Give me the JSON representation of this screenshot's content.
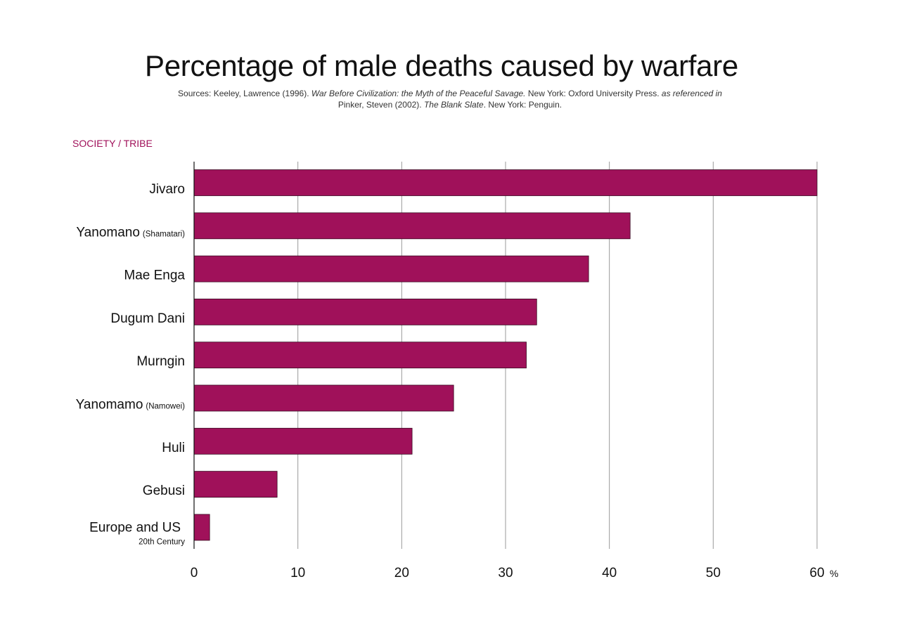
{
  "header": {
    "title": "Percentage of male deaths caused by warfare",
    "source": {
      "prefix": "Sources: Keeley, Lawrence (1996). ",
      "book1": "War Before Civilization: the Myth of the Peaceful Savage.",
      "publisher1": " New York: Oxford University Press. ",
      "ref": "as referenced in",
      "author2": "Pinker, Steven (2002). ",
      "book2": "The Blank Slate",
      "publisher2": ". New York: Penguin."
    }
  },
  "chart_data": {
    "type": "bar",
    "orientation": "horizontal",
    "title": "Percentage of male deaths caused by warfare",
    "ylabel": "SOCIETY / TRIBE",
    "x_unit": "%",
    "xlim": [
      0,
      60
    ],
    "x_ticks": [
      0,
      10,
      20,
      30,
      40,
      50,
      60
    ],
    "grid": "vertical",
    "bar_color": "#a0115a",
    "categories": [
      {
        "name": "Jivaro",
        "sub": ""
      },
      {
        "name": "Yanomano",
        "sub": "(Shamatari)"
      },
      {
        "name": "Mae Enga",
        "sub": ""
      },
      {
        "name": "Dugum Dani",
        "sub": ""
      },
      {
        "name": "Murngin",
        "sub": ""
      },
      {
        "name": "Yanomamo",
        "sub": "(Namowei)"
      },
      {
        "name": "Huli",
        "sub": ""
      },
      {
        "name": "Gebusi",
        "sub": ""
      },
      {
        "name": "Europe and US",
        "sub": "20th Century"
      }
    ],
    "values": [
      60,
      42,
      38,
      33,
      32,
      25,
      21,
      8,
      1.5
    ]
  }
}
